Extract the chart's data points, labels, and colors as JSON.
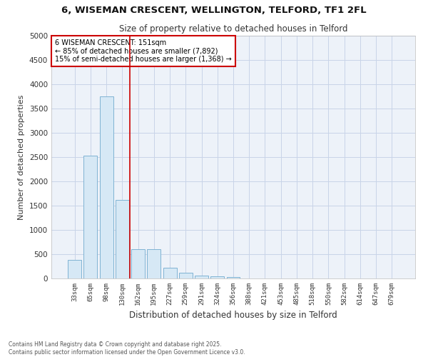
{
  "title": "6, WISEMAN CRESCENT, WELLINGTON, TELFORD, TF1 2FL",
  "subtitle": "Size of property relative to detached houses in Telford",
  "xlabel": "Distribution of detached houses by size in Telford",
  "ylabel": "Number of detached properties",
  "categories": [
    "33sqm",
    "65sqm",
    "98sqm",
    "130sqm",
    "162sqm",
    "195sqm",
    "227sqm",
    "259sqm",
    "291sqm",
    "324sqm",
    "356sqm",
    "388sqm",
    "421sqm",
    "453sqm",
    "485sqm",
    "518sqm",
    "550sqm",
    "582sqm",
    "614sqm",
    "647sqm",
    "679sqm"
  ],
  "values": [
    380,
    2530,
    3750,
    1620,
    610,
    610,
    220,
    120,
    60,
    50,
    30,
    0,
    0,
    0,
    0,
    0,
    0,
    0,
    0,
    0,
    0
  ],
  "bar_color": "#d6e8f5",
  "bar_edgecolor": "#7fb3d3",
  "vline_color": "#cc0000",
  "vline_x": 3.5,
  "annotation_text": "6 WISEMAN CRESCENT: 151sqm\n← 85% of detached houses are smaller (7,892)\n15% of semi-detached houses are larger (1,368) →",
  "annotation_box_edgecolor": "#cc0000",
  "grid_color": "#c8d4e8",
  "background_color": "#ffffff",
  "plot_background": "#edf2f9",
  "ylim": [
    0,
    5000
  ],
  "yticks": [
    0,
    500,
    1000,
    1500,
    2000,
    2500,
    3000,
    3500,
    4000,
    4500,
    5000
  ],
  "footer_line1": "Contains HM Land Registry data © Crown copyright and database right 2025.",
  "footer_line2": "Contains public sector information licensed under the Open Government Licence v3.0."
}
